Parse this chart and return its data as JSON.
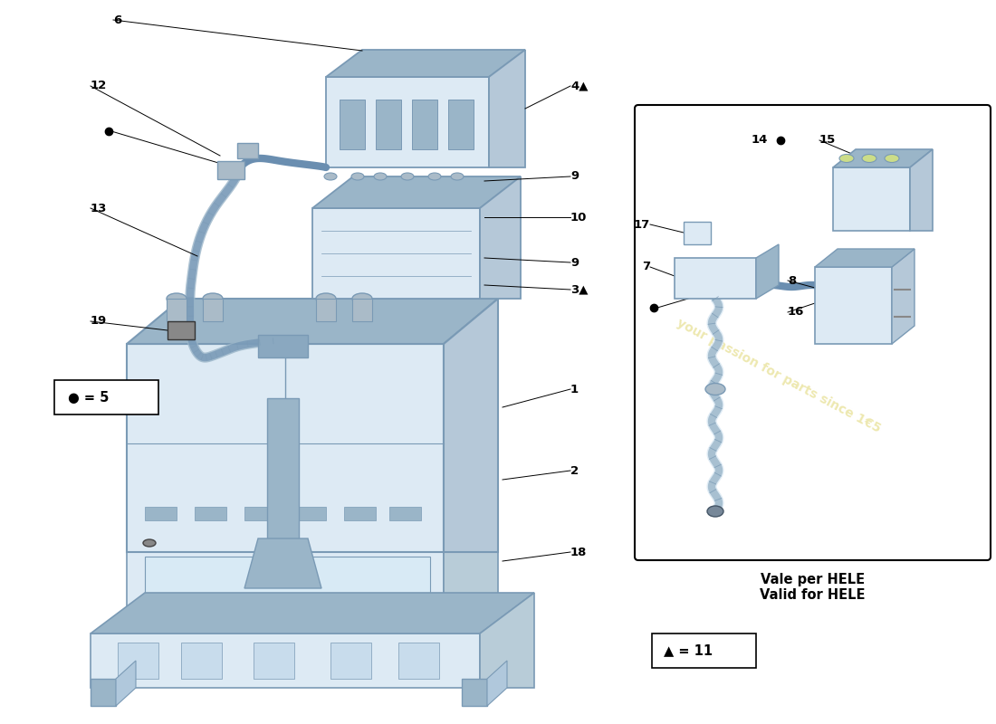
{
  "bg_color": "#ffffff",
  "line_color": "#000000",
  "part_color_light": "#cddcea",
  "part_color_mid": "#9ab5c8",
  "part_color_dark": "#6a8eb0",
  "part_color_highlight": "#ddeaf4",
  "part_edge": "#7a9ab5",
  "watermark_color": "#d8cc50",
  "watermark_alpha": 0.45,
  "callout_fontsize": 9.5,
  "legend_dot_text": "● = 5",
  "legend_triangle_text": "▲ = 11",
  "vale_text": "Vale per HELE\nValid for HELE",
  "fig_width": 11.0,
  "fig_height": 8.0
}
